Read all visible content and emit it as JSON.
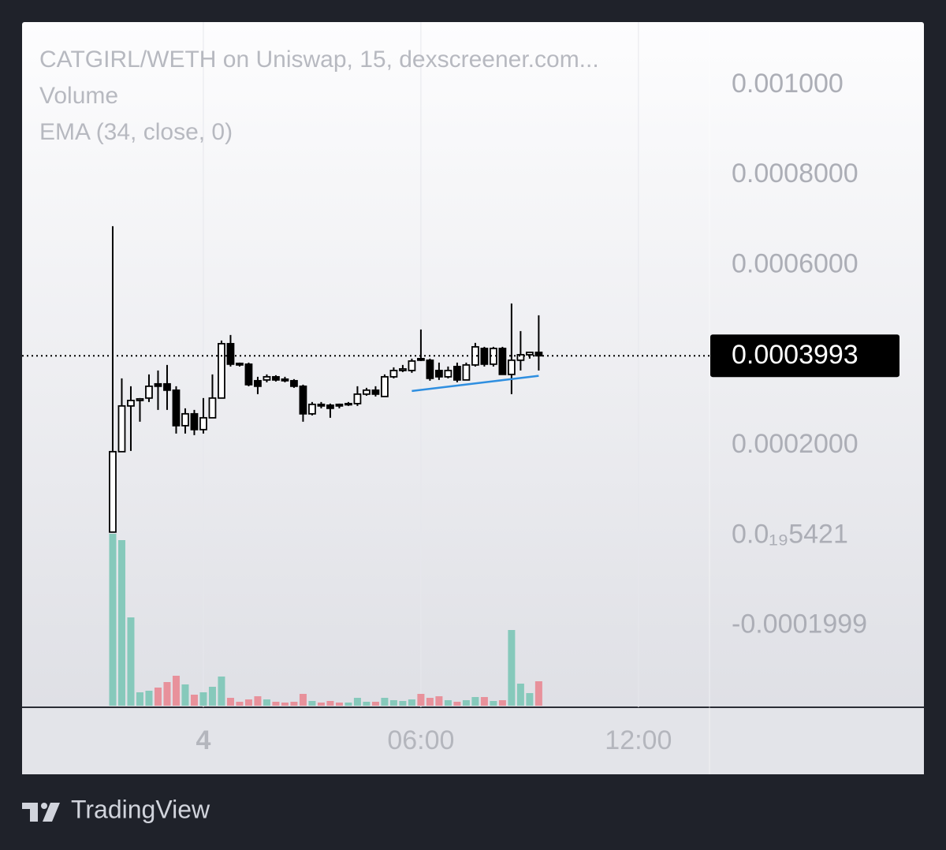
{
  "chart_data": {
    "type": "candlestick",
    "title": "CATGIRL/WETH on Uniswap, 15, dexscreener.com...",
    "indicators": [
      "Volume",
      "EMA (34, close, 0)"
    ],
    "brand": "TradingView",
    "x": [
      -2.5,
      -2.25,
      -2,
      -1.75,
      -1.5,
      -1.25,
      -1,
      -0.75,
      -0.5,
      -0.25,
      0,
      0.25,
      0.5,
      0.75,
      1,
      1.25,
      1.5,
      1.75,
      2,
      2.25,
      2.5,
      2.75,
      3,
      3.25,
      3.5,
      3.75,
      4,
      4.25,
      4.5,
      4.75,
      5,
      5.25,
      5.5,
      5.75,
      6,
      6.25,
      6.5,
      6.75,
      7,
      7.25,
      7.5,
      7.75,
      8,
      8.25,
      8.5,
      8.75,
      9,
      9.25
    ],
    "xlim": [
      -5,
      13.96
    ],
    "xticks": [
      {
        "value": 0,
        "label": "4"
      },
      {
        "value": 6,
        "label": "06:00"
      },
      {
        "value": 12,
        "label": "12:00"
      }
    ],
    "ylim": [
      -0.000381,
      0.00114
    ],
    "yticks": [
      {
        "value": 0.001,
        "label": "0.001000"
      },
      {
        "value": 0.0008,
        "label": "0.0008000"
      },
      {
        "value": 0.0006,
        "label": "0.0006000"
      },
      {
        "value": 0.0002,
        "label": "0.0002000"
      },
      {
        "value": 5.421e-20,
        "label": "0.0₁₉5421"
      },
      {
        "value": -0.0001999,
        "label": "-0.0001999"
      }
    ],
    "grid": true,
    "up_color": "#ffffff",
    "down_color": "#000000",
    "open": [
      7.9e-06,
      0.0001864,
      0.0002879,
      0.0003001,
      0.0003054,
      0.0003369,
      0.0003369,
      0.0003229,
      0.0002441,
      0.0002704,
      0.0002354,
      0.0002616,
      0.0003054,
      0.0004261,
      0.0003824,
      0.0003806,
      0.0003439,
      0.0003456,
      0.0003526,
      0.0003474,
      0.0003439,
      0.0003316,
      0.0002704,
      0.0002914,
      0.0002896,
      0.0002914,
      0.0002914,
      0.0002931,
      0.0003141,
      0.0003229,
      0.0003089,
      0.0003526,
      0.0003666,
      0.0003666,
      0.0003929,
      0.0003894,
      0.0003666,
      0.0003526,
      0.0003754,
      0.0003456,
      0.0003789,
      0.0004156,
      0.0003806,
      0.0004156,
      0.0003579,
      0.0003894,
      0.0004016,
      0.0004069
    ],
    "high": [
      0.0006869,
      0.0003491,
      0.0003316,
      0.0003054,
      0.0003579,
      0.0003666,
      0.0003789,
      0.0003316,
      0.0002826,
      0.0002791,
      0.0003054,
      0.0003579,
      0.0004331,
      0.0004454,
      0.0003841,
      0.0003841,
      0.0003526,
      0.0003579,
      0.0003561,
      0.0003526,
      0.0003474,
      0.0003351,
      0.0002966,
      0.0002966,
      0.0002931,
      0.0002931,
      0.0002966,
      0.0003316,
      0.0003281,
      0.0003316,
      0.0003579,
      0.0003736,
      0.0003789,
      0.0003929,
      0.0004576,
      0.0003929,
      0.0003841,
      0.0003754,
      0.0003841,
      0.0003841,
      0.0004279,
      0.0004191,
      0.0004191,
      0.0004191,
      0.0005154,
      0.0004541,
      0.0004069,
      0.0004891
    ],
    "low": [
      7.9e-06,
      0.0001864,
      0.0001881,
      0.0002529,
      0.0002966,
      0.0002791,
      0.0002791,
      0.0002266,
      0.0002266,
      0.0002231,
      0.0002266,
      0.0002616,
      0.0003054,
      0.0003754,
      0.0003754,
      0.0003316,
      0.0003141,
      0.0003404,
      0.0003421,
      0.0003404,
      0.0003281,
      0.0002529,
      0.0002669,
      0.0002826,
      0.0002616,
      0.0002826,
      0.0002879,
      0.0002879,
      0.0003106,
      0.0003089,
      0.0003089,
      0.0003491,
      0.0003631,
      0.0003614,
      0.0003876,
      0.0003439,
      0.0003456,
      0.0003491,
      0.0003404,
      0.0003456,
      0.0003754,
      0.0003754,
      0.0003754,
      0.0003614,
      0.0003141,
      0.0003666,
      0.0003929,
      0.0003666
    ],
    "close": [
      0.0001864,
      0.0002879,
      0.0003001,
      0.0003036,
      0.0003316,
      0.0003316,
      0.0003229,
      0.0002441,
      0.0002704,
      0.0002354,
      0.0002616,
      0.0003054,
      0.0004261,
      0.0003806,
      0.0003789,
      0.0003351,
      0.0003316,
      0.0003526,
      0.0003456,
      0.0003439,
      0.0003316,
      0.0002704,
      0.0002914,
      0.0002879,
      0.0002826,
      0.0002879,
      0.0002931,
      0.0003141,
      0.0003229,
      0.0003141,
      0.0003526,
      0.0003666,
      0.0003701,
      0.0003876,
      0.0003894,
      0.0003491,
      0.0003526,
      0.0003666,
      0.0003456,
      0.0003789,
      0.0004191,
      0.0003806,
      0.0004156,
      0.0003579,
      0.0003894,
      0.0004016,
      0.0004069,
      0.0003993
    ],
    "ema": {
      "name": "EMA (34, close, 0)",
      "color": "#2f8fe0",
      "values": [
        null,
        null,
        null,
        null,
        null,
        null,
        null,
        null,
        null,
        null,
        null,
        null,
        null,
        null,
        null,
        null,
        null,
        null,
        null,
        null,
        null,
        null,
        null,
        null,
        null,
        null,
        null,
        null,
        null,
        null,
        null,
        null,
        null,
        0.0003211,
        0.0003235,
        0.0003259,
        0.0003283,
        0.0003307,
        0.0003331,
        0.0003355,
        0.0003379,
        0.0003403,
        0.0003427,
        0.0003451,
        0.0003475,
        0.0003499,
        0.0003523,
        0.0003547
      ]
    },
    "volume": {
      "name": "Volume",
      "up_color": "#86c9bb",
      "down_color": "#e8919b",
      "ylim": [
        0,
        867
      ],
      "values": [
        218,
        210,
        112,
        17,
        19,
        23,
        30,
        38,
        27,
        14,
        17,
        24,
        37,
        10,
        5,
        8,
        12,
        8,
        5,
        4,
        5,
        15,
        6,
        4,
        6,
        4,
        4,
        10,
        5,
        5,
        10,
        7,
        6,
        8,
        15,
        10,
        12,
        7,
        5,
        7,
        11,
        11,
        6,
        7,
        96,
        28,
        16,
        31
      ]
    }
  }
}
